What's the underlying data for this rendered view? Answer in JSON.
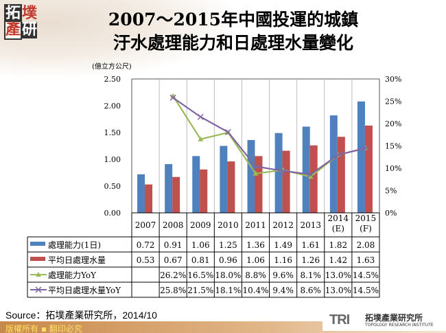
{
  "logo": {
    "chars": [
      "拓",
      "墣",
      "產",
      "研"
    ]
  },
  "title": {
    "line1": "2007～2015年中國投運的城鎮",
    "line2": "汙水處理能力和日處理水量變化"
  },
  "unit": "(億立方公尺)",
  "source": "Source：拓墣產業研究所，2014/10",
  "footer": {
    "copyright": "版權所有 ▪ 翻印必究",
    "brand_mark": "TRI",
    "brand_cn": "拓墣產業研究所",
    "brand_en": "TOPOLOGY RESEARCH INSTITUTE"
  },
  "chart_data": {
    "type": "bar+line",
    "categories": [
      "2007",
      "2008",
      "2009",
      "2010",
      "2011",
      "2012",
      "2013",
      "2014\n(E)",
      "2015\n(F)"
    ],
    "category_lines": [
      [
        "2007"
      ],
      [
        "2008"
      ],
      [
        "2009"
      ],
      [
        "2010"
      ],
      [
        "2011"
      ],
      [
        "2012"
      ],
      [
        "2013"
      ],
      [
        "2014",
        "(E)"
      ],
      [
        "2015",
        "(F)"
      ]
    ],
    "ylabel": "(億立方公尺)",
    "ylim": [
      0,
      2.5
    ],
    "yticks": [
      "0.00",
      "0.50",
      "1.00",
      "1.50",
      "2.00",
      "2.50"
    ],
    "y2lim": [
      0,
      30
    ],
    "y2ticks": [
      "0%",
      "5%",
      "10%",
      "15%",
      "20%",
      "25%",
      "30%"
    ],
    "legend": "data-table",
    "series": [
      {
        "name": "處理能力(1日)",
        "type": "bar",
        "axis": "left",
        "color": "#4f81bd",
        "values": [
          0.72,
          0.91,
          1.06,
          1.25,
          1.36,
          1.49,
          1.61,
          1.82,
          2.08
        ],
        "labels": [
          "0.72",
          "0.91",
          "1.06",
          "1.25",
          "1.36",
          "1.49",
          "1.61",
          "1.82",
          "2.08"
        ]
      },
      {
        "name": "平均日處理水量",
        "type": "bar",
        "axis": "left",
        "color": "#c0504d",
        "values": [
          0.53,
          0.67,
          0.81,
          0.96,
          1.06,
          1.16,
          1.26,
          1.42,
          1.63
        ],
        "labels": [
          "0.53",
          "0.67",
          "0.81",
          "0.96",
          "1.06",
          "1.16",
          "1.26",
          "1.42",
          "1.63"
        ]
      },
      {
        "name": "處理能力YoY",
        "type": "line",
        "marker": "triangle",
        "axis": "right",
        "color": "#9bbb59",
        "values": [
          null,
          26.2,
          16.5,
          18.0,
          8.8,
          9.6,
          8.1,
          13.0,
          14.5
        ],
        "labels": [
          "",
          "26.2%",
          "16.5%",
          "18.0%",
          "8.8%",
          "9.6%",
          "8.1%",
          "13.0%",
          "14.5%"
        ]
      },
      {
        "name": "平均日處理水量YoY",
        "type": "line",
        "marker": "x",
        "axis": "right",
        "color": "#8064a2",
        "values": [
          null,
          25.8,
          21.5,
          18.1,
          10.4,
          9.4,
          8.6,
          13.0,
          14.5
        ],
        "labels": [
          "",
          "25.8%",
          "21.5%",
          "18.1%",
          "10.4%",
          "9.4%",
          "8.6%",
          "13.0%",
          "14.5%"
        ]
      }
    ]
  }
}
